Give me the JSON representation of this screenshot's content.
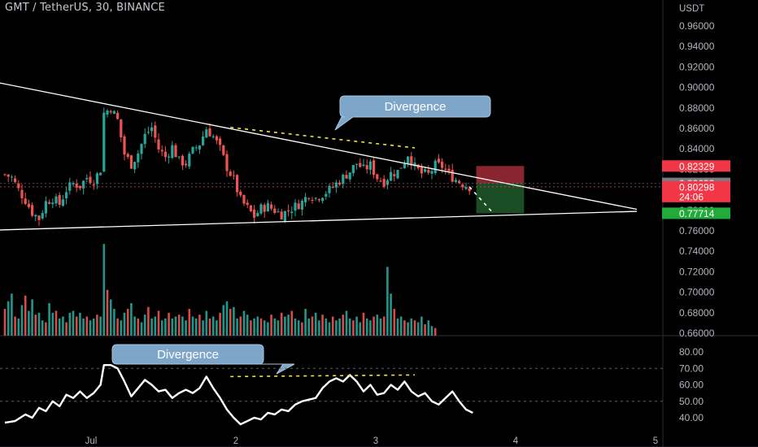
{
  "header": {
    "symbol_line": "GMT / TetherUS, 30, BINANCE"
  },
  "colors": {
    "background": "#000000",
    "up": "#26a69a",
    "down": "#ef5350",
    "trendline": "#ffffff",
    "divergence": "#f0e442",
    "callout": "#7ea6c9",
    "stop_zone": "#b7323f",
    "target_zone": "#1e5b2a",
    "tag_red": "#f23645",
    "tag_gray": "#787b86",
    "tag_green": "#22ab3b"
  },
  "chart_data": [
    {
      "type": "candlestick",
      "title": "GMT / TetherUS, 30, BINANCE",
      "yaxis_unit": "USDT",
      "y_ticks": [
        "0.96000",
        "0.94000",
        "0.92000",
        "0.90000",
        "0.88000",
        "0.86000",
        "0.84000",
        "0.82000",
        "0.80000",
        "0.78000",
        "0.76000",
        "0.74000",
        "0.72000",
        "0.70000",
        "0.68000",
        "0.66000"
      ],
      "x_ticks": [
        "Jul",
        "2",
        "3",
        "4",
        "5"
      ],
      "ylim": [
        0.66,
        0.97
      ],
      "price_tags": [
        {
          "value": "0.82329",
          "kind": "stop"
        },
        {
          "value": "0.80633",
          "kind": "last"
        },
        {
          "value": "0.80298",
          "kind": "current"
        },
        {
          "value": "24:06",
          "kind": "countdown"
        },
        {
          "value": "0.77714",
          "kind": "target"
        }
      ],
      "close_path": [
        [
          0,
          0.815
        ],
        [
          2,
          0.812
        ],
        [
          4,
          0.8
        ],
        [
          6,
          0.79
        ],
        [
          8,
          0.778
        ],
        [
          10,
          0.772
        ],
        [
          12,
          0.788
        ],
        [
          14,
          0.792
        ],
        [
          16,
          0.786
        ],
        [
          18,
          0.8
        ],
        [
          20,
          0.806
        ],
        [
          22,
          0.804
        ],
        [
          24,
          0.812
        ],
        [
          26,
          0.809
        ],
        [
          28,
          0.82
        ],
        [
          29,
          0.875
        ],
        [
          31,
          0.88
        ],
        [
          33,
          0.868
        ],
        [
          35,
          0.835
        ],
        [
          37,
          0.825
        ],
        [
          39,
          0.836
        ],
        [
          41,
          0.853
        ],
        [
          43,
          0.861
        ],
        [
          45,
          0.84
        ],
        [
          47,
          0.832
        ],
        [
          49,
          0.842
        ],
        [
          51,
          0.828
        ],
        [
          53,
          0.826
        ],
        [
          55,
          0.838
        ],
        [
          57,
          0.845
        ],
        [
          59,
          0.86
        ],
        [
          61,
          0.852
        ],
        [
          63,
          0.84
        ],
        [
          65,
          0.822
        ],
        [
          67,
          0.81
        ],
        [
          69,
          0.79
        ],
        [
          71,
          0.782
        ],
        [
          73,
          0.774
        ],
        [
          75,
          0.782
        ],
        [
          77,
          0.784
        ],
        [
          79,
          0.78
        ],
        [
          81,
          0.776
        ],
        [
          83,
          0.78
        ],
        [
          85,
          0.784
        ],
        [
          87,
          0.788
        ],
        [
          89,
          0.796
        ],
        [
          91,
          0.792
        ],
        [
          93,
          0.796
        ],
        [
          95,
          0.8
        ],
        [
          97,
          0.806
        ],
        [
          99,
          0.812
        ],
        [
          101,
          0.818
        ],
        [
          103,
          0.826
        ],
        [
          105,
          0.82
        ],
        [
          107,
          0.824
        ],
        [
          109,
          0.812
        ],
        [
          111,
          0.808
        ],
        [
          113,
          0.816
        ],
        [
          115,
          0.818
        ],
        [
          117,
          0.828
        ],
        [
          118,
          0.835
        ],
        [
          120,
          0.822
        ],
        [
          122,
          0.816
        ],
        [
          124,
          0.815
        ],
        [
          126,
          0.824
        ],
        [
          128,
          0.823
        ],
        [
          130,
          0.815
        ],
        [
          132,
          0.81
        ],
        [
          134,
          0.806
        ],
        [
          136,
          0.803
        ]
      ],
      "trendlines": [
        {
          "name": "descending resistance",
          "from": [
            -10,
            0.91
          ],
          "to": [
            185,
            0.781
          ]
        },
        {
          "name": "ascending support",
          "from": [
            -10,
            0.76
          ],
          "to": [
            185,
            0.779
          ]
        },
        {
          "name": "price divergence",
          "from": [
            66,
            0.861
          ],
          "to": [
            120,
            0.841
          ]
        },
        {
          "name": "projected move",
          "from": [
            136,
            0.803
          ],
          "to": [
            143,
            0.777
          ]
        }
      ],
      "position_box": {
        "from": [
          138,
          0.82329
        ],
        "to": [
          152,
          0.77714
        ],
        "entry": 0.80633
      },
      "annotations": [
        {
          "text": "Divergence",
          "at": "price"
        }
      ]
    },
    {
      "type": "volume",
      "values": [
        14,
        18,
        22,
        10,
        9,
        16,
        21,
        13,
        19,
        11,
        12,
        8,
        7,
        17,
        12,
        13,
        9,
        10,
        7,
        12,
        13,
        10,
        12,
        9,
        10,
        8,
        9,
        11,
        10,
        48,
        24,
        19,
        14,
        9,
        8,
        12,
        14,
        17,
        10,
        9,
        7,
        11,
        15,
        9,
        10,
        13,
        8,
        9,
        12,
        9,
        10,
        11,
        10,
        8,
        14,
        10,
        9,
        11,
        8,
        13,
        9,
        10,
        8,
        12,
        16,
        18,
        14,
        15,
        9,
        10,
        13,
        11,
        8,
        9,
        10,
        9,
        8,
        7,
        11,
        9,
        8,
        12,
        10,
        11,
        13,
        9,
        8,
        7,
        14,
        9,
        10,
        12,
        8,
        11,
        9,
        7,
        10,
        8,
        9,
        11,
        13,
        9,
        8,
        10,
        7,
        12,
        9,
        8,
        10,
        11,
        9,
        10,
        36,
        22,
        14,
        9,
        10,
        8,
        7,
        9,
        8,
        7,
        10,
        6,
        8,
        5,
        4
      ],
      "annotations": []
    },
    {
      "type": "line",
      "name": "oscillator",
      "y_ticks": [
        "80.00",
        "70.00",
        "60.00",
        "50.00",
        "40.00"
      ],
      "ylim": [
        35,
        83
      ],
      "levels": [
        70,
        50
      ],
      "values": [
        [
          0,
          37
        ],
        [
          3,
          38
        ],
        [
          6,
          42
        ],
        [
          8,
          40
        ],
        [
          10,
          46
        ],
        [
          12,
          44
        ],
        [
          14,
          50
        ],
        [
          16,
          47
        ],
        [
          18,
          54
        ],
        [
          20,
          52
        ],
        [
          22,
          56
        ],
        [
          24,
          52
        ],
        [
          26,
          55
        ],
        [
          28,
          60
        ],
        [
          29,
          72
        ],
        [
          31,
          72
        ],
        [
          33,
          70
        ],
        [
          35,
          62
        ],
        [
          37,
          53
        ],
        [
          39,
          58
        ],
        [
          41,
          63
        ],
        [
          43,
          60
        ],
        [
          45,
          56
        ],
        [
          47,
          57
        ],
        [
          49,
          52
        ],
        [
          51,
          55
        ],
        [
          53,
          57
        ],
        [
          55,
          55
        ],
        [
          57,
          58
        ],
        [
          59,
          65
        ],
        [
          61,
          58
        ],
        [
          63,
          52
        ],
        [
          65,
          45
        ],
        [
          67,
          40
        ],
        [
          69,
          36
        ],
        [
          71,
          38
        ],
        [
          73,
          40
        ],
        [
          75,
          39
        ],
        [
          77,
          43
        ],
        [
          79,
          42
        ],
        [
          81,
          45
        ],
        [
          83,
          44
        ],
        [
          85,
          48
        ],
        [
          87,
          50
        ],
        [
          89,
          51
        ],
        [
          91,
          52
        ],
        [
          93,
          58
        ],
        [
          95,
          62
        ],
        [
          97,
          64
        ],
        [
          99,
          62
        ],
        [
          101,
          66
        ],
        [
          103,
          62
        ],
        [
          105,
          56
        ],
        [
          107,
          60
        ],
        [
          109,
          54
        ],
        [
          111,
          55
        ],
        [
          113,
          60
        ],
        [
          115,
          57
        ],
        [
          117,
          62
        ],
        [
          119,
          56
        ],
        [
          121,
          53
        ],
        [
          123,
          55
        ],
        [
          125,
          50
        ],
        [
          127,
          48
        ],
        [
          129,
          52
        ],
        [
          131,
          56
        ],
        [
          133,
          50
        ],
        [
          135,
          45
        ],
        [
          137,
          43
        ]
      ],
      "divergence": {
        "from": [
          66,
          65
        ],
        "to": [
          120,
          66
        ]
      },
      "annotations": [
        {
          "text": "Divergence",
          "at": "oscillator"
        }
      ]
    }
  ]
}
